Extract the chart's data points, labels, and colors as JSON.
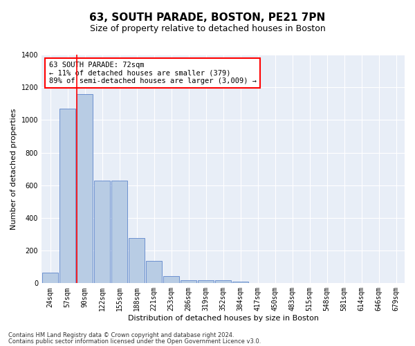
{
  "title": "63, SOUTH PARADE, BOSTON, PE21 7PN",
  "subtitle": "Size of property relative to detached houses in Boston",
  "xlabel": "Distribution of detached houses by size in Boston",
  "ylabel": "Number of detached properties",
  "footnote1": "Contains HM Land Registry data © Crown copyright and database right 2024.",
  "footnote2": "Contains public sector information licensed under the Open Government Licence v3.0.",
  "annotation_title": "63 SOUTH PARADE: 72sqm",
  "annotation_line1": "← 11% of detached houses are smaller (379)",
  "annotation_line2": "89% of semi-detached houses are larger (3,009) →",
  "bar_categories": [
    "24sqm",
    "57sqm",
    "90sqm",
    "122sqm",
    "155sqm",
    "188sqm",
    "221sqm",
    "253sqm",
    "286sqm",
    "319sqm",
    "352sqm",
    "384sqm",
    "417sqm",
    "450sqm",
    "483sqm",
    "515sqm",
    "548sqm",
    "581sqm",
    "614sqm",
    "646sqm",
    "679sqm"
  ],
  "bar_values": [
    65,
    1070,
    1160,
    630,
    630,
    275,
    135,
    45,
    20,
    20,
    20,
    10,
    0,
    0,
    0,
    0,
    0,
    0,
    0,
    0,
    0
  ],
  "bar_color": "#b8cce4",
  "bar_edge_color": "#4472c4",
  "red_line_color": "#ff0000",
  "background_color": "#ffffff",
  "plot_bg_color": "#e8eef7",
  "grid_color": "#ffffff",
  "ylim": [
    0,
    1400
  ],
  "yticks": [
    0,
    200,
    400,
    600,
    800,
    1000,
    1200,
    1400
  ],
  "title_fontsize": 11,
  "subtitle_fontsize": 9,
  "axis_label_fontsize": 8,
  "tick_fontsize": 7,
  "annotation_fontsize": 7.5,
  "footnote_fontsize": 6
}
